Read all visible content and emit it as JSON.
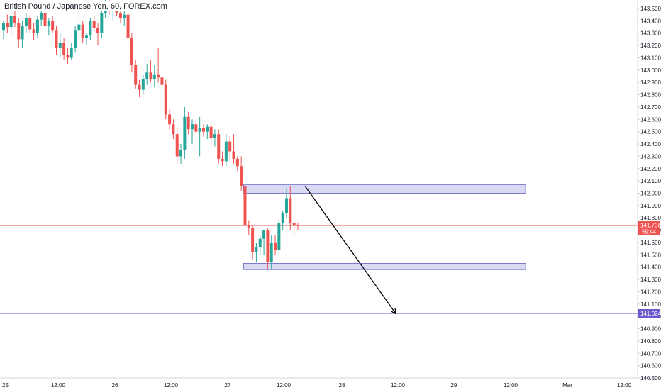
{
  "header": {
    "title": "British Pound / Japanese Yen, 60, FOREX.com"
  },
  "colors": {
    "up": "#26a69a",
    "down": "#ef5350",
    "zone_fill": "#d9d9f5",
    "zone_stroke": "#7a7ac8",
    "target_line": "#6a5acd",
    "price_line": "#f28b8b",
    "axis_text": "#131722",
    "border": "#d1d4dc"
  },
  "chart_data": {
    "type": "candlestick",
    "title": "British Pound / Japanese Yen, 60, FOREX.com",
    "xlabel": "",
    "ylabel": "",
    "ylim": [
      140.49,
      143.58
    ],
    "grid": false,
    "y_ticks": [
      "143.500",
      "143.400",
      "143.300",
      "143.200",
      "143.100",
      "143.000",
      "142.900",
      "142.800",
      "142.700",
      "142.600",
      "142.500",
      "142.400",
      "142.300",
      "142.200",
      "142.100",
      "142.000",
      "141.900",
      "141.800",
      "141.700",
      "141.600",
      "141.500",
      "141.400",
      "141.300",
      "141.200",
      "141.100",
      "141.000",
      "140.900",
      "140.800",
      "140.700",
      "140.600",
      "140.500"
    ],
    "x_ticks": [
      "25",
      "12:00",
      "26",
      "12:00",
      "27",
      "12:00",
      "28",
      "12:00",
      "29",
      "12:00",
      "Mar",
      "12:00"
    ],
    "candles": [
      [
        143.32,
        143.4,
        143.25,
        143.38
      ],
      [
        143.38,
        143.45,
        143.3,
        143.35
      ],
      [
        143.35,
        143.48,
        143.28,
        143.44
      ],
      [
        143.44,
        143.5,
        143.35,
        143.38
      ],
      [
        143.38,
        143.42,
        143.18,
        143.25
      ],
      [
        143.25,
        143.4,
        143.18,
        143.36
      ],
      [
        143.36,
        143.46,
        143.3,
        143.42
      ],
      [
        143.42,
        143.45,
        143.3,
        143.33
      ],
      [
        143.33,
        143.38,
        143.24,
        143.3
      ],
      [
        143.3,
        143.44,
        143.26,
        143.41
      ],
      [
        143.41,
        143.52,
        143.36,
        143.46
      ],
      [
        143.46,
        143.5,
        143.32,
        143.36
      ],
      [
        143.36,
        143.42,
        143.28,
        143.4
      ],
      [
        143.4,
        143.44,
        143.3,
        143.32
      ],
      [
        143.32,
        143.36,
        143.12,
        143.18
      ],
      [
        143.18,
        143.3,
        143.1,
        143.22
      ],
      [
        143.22,
        143.26,
        143.08,
        143.12
      ],
      [
        143.12,
        143.18,
        143.05,
        143.1
      ],
      [
        143.1,
        143.22,
        143.08,
        143.18
      ],
      [
        143.18,
        143.36,
        143.14,
        143.32
      ],
      [
        143.32,
        143.42,
        143.26,
        143.37
      ],
      [
        143.37,
        143.4,
        143.22,
        143.26
      ],
      [
        143.26,
        143.3,
        143.2,
        143.28
      ],
      [
        143.28,
        143.42,
        143.24,
        143.4
      ],
      [
        143.4,
        143.44,
        143.3,
        143.34
      ],
      [
        143.34,
        143.38,
        143.2,
        143.3
      ],
      [
        143.3,
        143.5,
        143.26,
        143.46
      ],
      [
        143.46,
        143.58,
        143.42,
        143.55
      ],
      [
        143.55,
        143.58,
        143.45,
        143.48
      ],
      [
        143.48,
        143.52,
        143.4,
        143.5
      ],
      [
        143.5,
        143.55,
        143.44,
        143.46
      ],
      [
        143.46,
        143.52,
        143.38,
        143.42
      ],
      [
        143.42,
        143.48,
        143.36,
        143.45
      ],
      [
        143.45,
        143.5,
        143.22,
        143.26
      ],
      [
        143.26,
        143.3,
        142.98,
        143.04
      ],
      [
        143.04,
        143.08,
        142.85,
        142.88
      ],
      [
        142.88,
        142.92,
        142.78,
        142.84
      ],
      [
        142.84,
        142.96,
        142.8,
        142.93
      ],
      [
        142.93,
        143.05,
        142.88,
        142.98
      ],
      [
        142.98,
        143.08,
        142.9,
        142.93
      ],
      [
        142.93,
        143.04,
        142.86,
        142.96
      ],
      [
        142.96,
        143.18,
        142.9,
        142.94
      ],
      [
        142.94,
        143.0,
        142.8,
        142.88
      ],
      [
        142.88,
        142.92,
        142.6,
        142.64
      ],
      [
        142.64,
        142.68,
        142.52,
        142.56
      ],
      [
        142.56,
        142.6,
        142.44,
        142.48
      ],
      [
        142.48,
        142.54,
        142.24,
        142.3
      ],
      [
        142.3,
        142.4,
        142.24,
        142.35
      ],
      [
        142.35,
        142.7,
        142.28,
        142.62
      ],
      [
        142.62,
        142.66,
        142.48,
        142.52
      ],
      [
        142.52,
        142.6,
        142.4,
        142.56
      ],
      [
        142.56,
        142.6,
        142.48,
        142.5
      ],
      [
        142.5,
        142.62,
        142.3,
        142.53
      ],
      [
        142.53,
        142.56,
        142.46,
        142.5
      ],
      [
        142.5,
        142.56,
        142.44,
        142.54
      ],
      [
        142.54,
        142.6,
        142.38,
        142.45
      ],
      [
        142.45,
        142.52,
        142.38,
        142.48
      ],
      [
        142.48,
        142.52,
        142.24,
        142.28
      ],
      [
        142.28,
        142.34,
        142.22,
        142.26
      ],
      [
        142.26,
        142.48,
        142.22,
        142.42
      ],
      [
        142.42,
        142.46,
        142.28,
        142.34
      ],
      [
        142.34,
        142.48,
        142.24,
        142.28
      ],
      [
        142.28,
        142.3,
        142.18,
        142.22
      ],
      [
        142.22,
        142.3,
        142.02,
        142.06
      ],
      [
        142.06,
        142.1,
        141.7,
        141.74
      ],
      [
        141.74,
        141.78,
        141.66,
        141.72
      ],
      [
        141.72,
        141.74,
        141.46,
        141.52
      ],
      [
        141.52,
        141.6,
        141.44,
        141.56
      ],
      [
        141.56,
        141.66,
        141.5,
        141.63
      ],
      [
        141.63,
        141.7,
        141.5,
        141.7
      ],
      [
        141.7,
        141.72,
        141.38,
        141.44
      ],
      [
        141.44,
        141.66,
        141.38,
        141.6
      ],
      [
        141.6,
        141.66,
        141.5,
        141.54
      ],
      [
        141.54,
        141.8,
        141.5,
        141.76
      ],
      [
        141.76,
        141.86,
        141.7,
        141.84
      ],
      [
        141.84,
        142.04,
        141.8,
        141.96
      ],
      [
        141.96,
        142.06,
        141.7,
        141.76
      ],
      [
        141.76,
        141.8,
        141.66,
        141.74
      ],
      [
        141.74,
        141.76,
        141.7,
        141.736
      ]
    ],
    "zones": [
      {
        "from_candle": 64,
        "to_candle": 138,
        "top": 142.07,
        "bottom": 142.0
      },
      {
        "from_candle": 64,
        "to_candle": 138,
        "top": 141.43,
        "bottom": 141.38
      }
    ],
    "arrow": {
      "from_candle": 78,
      "from_price": 142.06,
      "to_candle": 98,
      "to_price": 141.02
    },
    "current_price": {
      "value": 141.736,
      "label": "141.736",
      "countdown": "59:44"
    },
    "target_line": {
      "value": 141.024,
      "label": "141.024"
    }
  }
}
